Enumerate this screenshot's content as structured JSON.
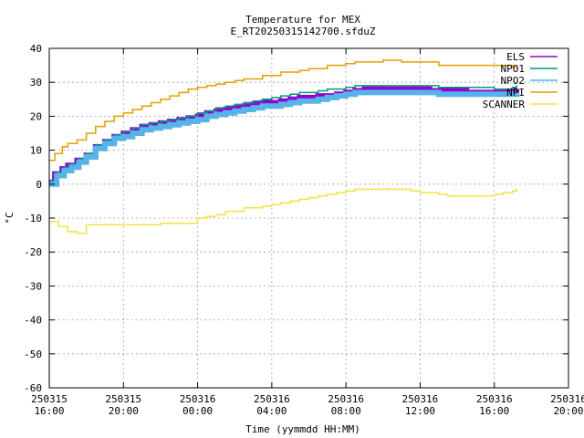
{
  "chart_data": {
    "type": "line",
    "title": "Temperature for MEX",
    "subtitle": "E_RT20250315142700.sfduZ",
    "xlabel": "Time (yymmdd HH:MM)",
    "ylabel": "°C",
    "ylim": [
      -60,
      40
    ],
    "yticks": [
      40,
      30,
      20,
      10,
      0,
      -10,
      -20,
      -30,
      -40,
      -50,
      -60
    ],
    "xlim": [
      16,
      44
    ],
    "xticks": [
      {
        "h": 16,
        "date": "250315",
        "time": "16:00"
      },
      {
        "h": 20,
        "date": "250315",
        "time": "20:00"
      },
      {
        "h": 24,
        "date": "250316",
        "time": "00:00"
      },
      {
        "h": 28,
        "date": "250316",
        "time": "04:00"
      },
      {
        "h": 32,
        "date": "250316",
        "time": "08:00"
      },
      {
        "h": 36,
        "date": "250316",
        "time": "12:00"
      },
      {
        "h": 40,
        "date": "250316",
        "time": "16:00"
      },
      {
        "h": 44,
        "date": "250316",
        "time": "20:00"
      }
    ],
    "grid": true,
    "legend_position": "top-right",
    "series": [
      {
        "name": "ELS",
        "color": "#9400d3",
        "width": 6,
        "points": [
          [
            16.0,
            0.5
          ],
          [
            16.3,
            3
          ],
          [
            16.7,
            4.5
          ],
          [
            17.0,
            5.5
          ],
          [
            17.5,
            7
          ],
          [
            18.0,
            8.5
          ],
          [
            18.5,
            11
          ],
          [
            19.0,
            12.5
          ],
          [
            19.5,
            14
          ],
          [
            20.0,
            15
          ],
          [
            20.5,
            16
          ],
          [
            21.0,
            17
          ],
          [
            21.5,
            17.5
          ],
          [
            22.0,
            18
          ],
          [
            22.5,
            18.5
          ],
          [
            23.0,
            19
          ],
          [
            23.5,
            19.5
          ],
          [
            24.0,
            20
          ],
          [
            24.5,
            21
          ],
          [
            25.0,
            21.5
          ],
          [
            25.5,
            22
          ],
          [
            26.0,
            22.5
          ],
          [
            26.5,
            23
          ],
          [
            27.0,
            23.5
          ],
          [
            27.5,
            24
          ],
          [
            28.0,
            24
          ],
          [
            28.5,
            24.5
          ],
          [
            29.0,
            25
          ],
          [
            29.5,
            25.5
          ],
          [
            30.0,
            25.5
          ],
          [
            30.5,
            26
          ],
          [
            31.0,
            26
          ],
          [
            31.5,
            26.5
          ],
          [
            32.0,
            27
          ],
          [
            32.5,
            27.5
          ],
          [
            33.0,
            28
          ],
          [
            33.5,
            28
          ],
          [
            34.0,
            28
          ],
          [
            34.5,
            28
          ],
          [
            35.0,
            28
          ],
          [
            35.5,
            28
          ],
          [
            36.0,
            28
          ],
          [
            36.5,
            27.5
          ],
          [
            37.0,
            27.5
          ],
          [
            37.5,
            27.5
          ],
          [
            38.0,
            27.5
          ],
          [
            38.5,
            27
          ],
          [
            39.0,
            27
          ],
          [
            39.5,
            27
          ],
          [
            40.0,
            27
          ],
          [
            40.5,
            27
          ],
          [
            41.0,
            27.5
          ],
          [
            41.2,
            28
          ]
        ]
      },
      {
        "name": "NPO1",
        "color": "#009e73",
        "width": 1.5,
        "points": [
          [
            16.0,
            1
          ],
          [
            16.4,
            3.5
          ],
          [
            16.8,
            5
          ],
          [
            17.2,
            6
          ],
          [
            17.6,
            7.5
          ],
          [
            18.0,
            9
          ],
          [
            18.5,
            11.5
          ],
          [
            19.0,
            13
          ],
          [
            19.5,
            14.5
          ],
          [
            20.0,
            15.5
          ],
          [
            20.5,
            16.5
          ],
          [
            21.0,
            17.5
          ],
          [
            21.5,
            18
          ],
          [
            22.0,
            18.5
          ],
          [
            22.5,
            19
          ],
          [
            23.0,
            19.5
          ],
          [
            23.5,
            20
          ],
          [
            24.0,
            21
          ],
          [
            24.5,
            21.5
          ],
          [
            25.0,
            22.5
          ],
          [
            25.5,
            23
          ],
          [
            26.0,
            23.5
          ],
          [
            26.5,
            24
          ],
          [
            27.0,
            24.5
          ],
          [
            27.5,
            25
          ],
          [
            28.0,
            25.5
          ],
          [
            28.5,
            26
          ],
          [
            29.0,
            26.5
          ],
          [
            29.5,
            27
          ],
          [
            30.0,
            27
          ],
          [
            30.5,
            27.5
          ],
          [
            31.0,
            28
          ],
          [
            31.5,
            28
          ],
          [
            32.0,
            28.5
          ],
          [
            32.5,
            29
          ],
          [
            33.0,
            29
          ],
          [
            34.0,
            29
          ],
          [
            35.0,
            29
          ],
          [
            36.0,
            29
          ],
          [
            37.0,
            28.5
          ],
          [
            38.0,
            28.5
          ],
          [
            39.0,
            28.5
          ],
          [
            40.0,
            28
          ],
          [
            41.0,
            28.5
          ],
          [
            41.2,
            29
          ]
        ]
      },
      {
        "name": "NPO2",
        "color": "#56b4e9",
        "width": 6,
        "points": [
          [
            16.0,
            0
          ],
          [
            16.4,
            2.5
          ],
          [
            16.8,
            4
          ],
          [
            17.2,
            5
          ],
          [
            17.6,
            6.5
          ],
          [
            18.0,
            8
          ],
          [
            18.5,
            10.5
          ],
          [
            19.0,
            12
          ],
          [
            19.5,
            13.5
          ],
          [
            20.0,
            14
          ],
          [
            20.5,
            15
          ],
          [
            21.0,
            16
          ],
          [
            21.5,
            16.5
          ],
          [
            22.0,
            17
          ],
          [
            22.5,
            17.5
          ],
          [
            23.0,
            18
          ],
          [
            23.5,
            18.5
          ],
          [
            24.0,
            19
          ],
          [
            24.5,
            20
          ],
          [
            25.0,
            20.5
          ],
          [
            25.5,
            21
          ],
          [
            26.0,
            21.5
          ],
          [
            26.5,
            22
          ],
          [
            27.0,
            22.5
          ],
          [
            27.5,
            23
          ],
          [
            28.0,
            23
          ],
          [
            28.5,
            23.5
          ],
          [
            29.0,
            24
          ],
          [
            29.5,
            24.5
          ],
          [
            30.0,
            24.5
          ],
          [
            30.5,
            25
          ],
          [
            31.0,
            25.5
          ],
          [
            31.5,
            26
          ],
          [
            32.0,
            26.5
          ],
          [
            32.5,
            27
          ],
          [
            33.0,
            27
          ],
          [
            34.0,
            27
          ],
          [
            35.0,
            27
          ],
          [
            36.0,
            27
          ],
          [
            37.0,
            26.5
          ],
          [
            38.0,
            26.5
          ],
          [
            39.0,
            26.5
          ],
          [
            40.0,
            26.5
          ],
          [
            41.0,
            26.5
          ],
          [
            41.2,
            27
          ]
        ]
      },
      {
        "name": "NPI",
        "color": "#e69f00",
        "width": 1.5,
        "points": [
          [
            16.0,
            7
          ],
          [
            16.3,
            9
          ],
          [
            16.7,
            11
          ],
          [
            17.0,
            12
          ],
          [
            17.5,
            13
          ],
          [
            18.0,
            15
          ],
          [
            18.5,
            17
          ],
          [
            19.0,
            18.5
          ],
          [
            19.5,
            20
          ],
          [
            20.0,
            21
          ],
          [
            20.5,
            22
          ],
          [
            21.0,
            23
          ],
          [
            21.5,
            24
          ],
          [
            22.0,
            25
          ],
          [
            22.5,
            26
          ],
          [
            23.0,
            27
          ],
          [
            23.5,
            28
          ],
          [
            24.0,
            28.5
          ],
          [
            24.5,
            29
          ],
          [
            25.0,
            29.5
          ],
          [
            25.5,
            30
          ],
          [
            26.0,
            30.5
          ],
          [
            26.5,
            31
          ],
          [
            27.0,
            31
          ],
          [
            27.5,
            32
          ],
          [
            28.0,
            32
          ],
          [
            28.5,
            33
          ],
          [
            29.0,
            33
          ],
          [
            29.5,
            33.5
          ],
          [
            30.0,
            34
          ],
          [
            30.5,
            34
          ],
          [
            31.0,
            35
          ],
          [
            31.5,
            35
          ],
          [
            32.0,
            35.5
          ],
          [
            32.5,
            36
          ],
          [
            33.0,
            36
          ],
          [
            33.5,
            36
          ],
          [
            34.0,
            36.5
          ],
          [
            34.5,
            36.5
          ],
          [
            35.0,
            36
          ],
          [
            36.0,
            36
          ],
          [
            37.0,
            35
          ],
          [
            38.0,
            35
          ],
          [
            39.0,
            35
          ],
          [
            40.0,
            35
          ],
          [
            41.0,
            34.5
          ],
          [
            41.2,
            34.5
          ]
        ]
      },
      {
        "name": "SCANNER",
        "color": "#f0e442",
        "width": 1.5,
        "points": [
          [
            16.0,
            -11
          ],
          [
            16.5,
            -12.5
          ],
          [
            17.0,
            -14
          ],
          [
            17.5,
            -14.5
          ],
          [
            18.0,
            -12
          ],
          [
            18.5,
            -12
          ],
          [
            19.0,
            -12
          ],
          [
            20.0,
            -12
          ],
          [
            21.0,
            -12
          ],
          [
            22.0,
            -11.5
          ],
          [
            23.0,
            -11.5
          ],
          [
            24.0,
            -10
          ],
          [
            24.5,
            -9.5
          ],
          [
            25.0,
            -9
          ],
          [
            25.5,
            -8
          ],
          [
            26.0,
            -8
          ],
          [
            26.5,
            -7
          ],
          [
            27.0,
            -7
          ],
          [
            27.5,
            -6.5
          ],
          [
            28.0,
            -6
          ],
          [
            28.5,
            -5.5
          ],
          [
            29.0,
            -5
          ],
          [
            29.5,
            -4.5
          ],
          [
            30.0,
            -4
          ],
          [
            30.5,
            -3.5
          ],
          [
            31.0,
            -3
          ],
          [
            31.5,
            -2.5
          ],
          [
            32.0,
            -2
          ],
          [
            32.5,
            -1.5
          ],
          [
            33.0,
            -1.5
          ],
          [
            34.0,
            -1.5
          ],
          [
            35.0,
            -1.5
          ],
          [
            35.5,
            -2
          ],
          [
            36.0,
            -2.5
          ],
          [
            36.5,
            -2.5
          ],
          [
            37.0,
            -3
          ],
          [
            37.5,
            -3.5
          ],
          [
            38.0,
            -3.5
          ],
          [
            38.5,
            -3.5
          ],
          [
            39.0,
            -3.5
          ],
          [
            39.5,
            -3.5
          ],
          [
            40.0,
            -3
          ],
          [
            40.5,
            -2.5
          ],
          [
            41.0,
            -2
          ],
          [
            41.2,
            -1.5
          ]
        ]
      }
    ]
  }
}
